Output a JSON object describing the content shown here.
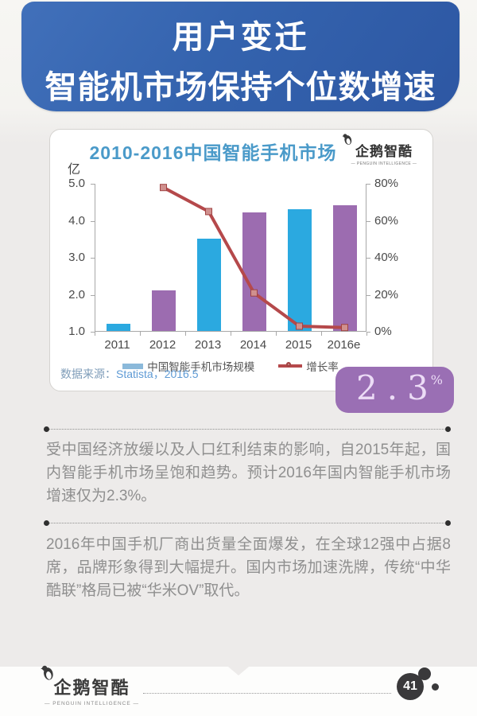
{
  "header": {
    "line1": "用户变迁",
    "line2": "智能机市场保持个位数增速"
  },
  "chart_card": {
    "title": "2010-2016中国智能手机市场",
    "logo_name": "企鹅智酷",
    "logo_subtitle": "— PENGUIN INTELLIGENCE —",
    "unit_label": "亿",
    "source_prefix": "数据来源：",
    "source_value": "Statista，2016.5"
  },
  "chart_data": {
    "type": "bar+line combo",
    "title": "2010-2016中国智能手机市场",
    "categories": [
      "2011",
      "2012",
      "2013",
      "2014",
      "2015",
      "2016e"
    ],
    "series": [
      {
        "name": "中国智能手机市场规模",
        "type": "bar",
        "axis": "left",
        "unit": "亿",
        "values": [
          1.2,
          2.1,
          3.5,
          4.2,
          4.3,
          4.4
        ]
      },
      {
        "name": "增长率",
        "type": "line",
        "axis": "right",
        "unit": "%",
        "values": [
          null,
          78,
          65,
          21,
          3,
          2.3
        ]
      }
    ],
    "bar_colors": [
      "#2ba9e0",
      "#9c6cb0",
      "#2ba9e0",
      "#9c6cb0",
      "#2ba9e0",
      "#9c6cb0"
    ],
    "line_color": "#b5494b",
    "marker_fill": "#d0908e",
    "marker_stroke": "#a04343",
    "left_axis": {
      "label": "亿",
      "min": 1.0,
      "max": 5.0,
      "ticks": [
        "5.0",
        "4.0",
        "3.0",
        "2.0",
        "1.0"
      ]
    },
    "right_axis": {
      "min": 0,
      "max": 80,
      "ticks": [
        "80%",
        "60%",
        "40%",
        "20%",
        "0%"
      ]
    },
    "legend_position": "bottom",
    "grid": false,
    "source": "数据来源：Statista，2016.5"
  },
  "highlight": {
    "value": "2.3",
    "unit": "%",
    "color": "#9a6fb4"
  },
  "paragraphs": [
    {
      "text": "受中国经济放缓以及人口红利结束的影响，自2015年起，国内智能手机市场呈饱和趋势。预计2016年国内智能手机市场增速仅为2.3%。"
    },
    {
      "text": "2016年中国手机厂商出货量全面爆发，在全球12强中占据8席，品牌形象得到大幅提升。国内市场加速洗牌，传统“中华酷联”格局已被“华米OV”取代。"
    }
  ],
  "footer": {
    "logo_name": "企鹅智酷",
    "logo_subtitle": "— PENGUIN INTELLIGENCE —",
    "page_number": "41"
  },
  "colors": {
    "header_blue": "#3463ae",
    "title_blue": "#4a9ac9",
    "bar_blue": "#2ba9e0",
    "bar_purple": "#9c6cb0",
    "line_red": "#b5494b",
    "highlight_purple": "#9a6fb4"
  }
}
